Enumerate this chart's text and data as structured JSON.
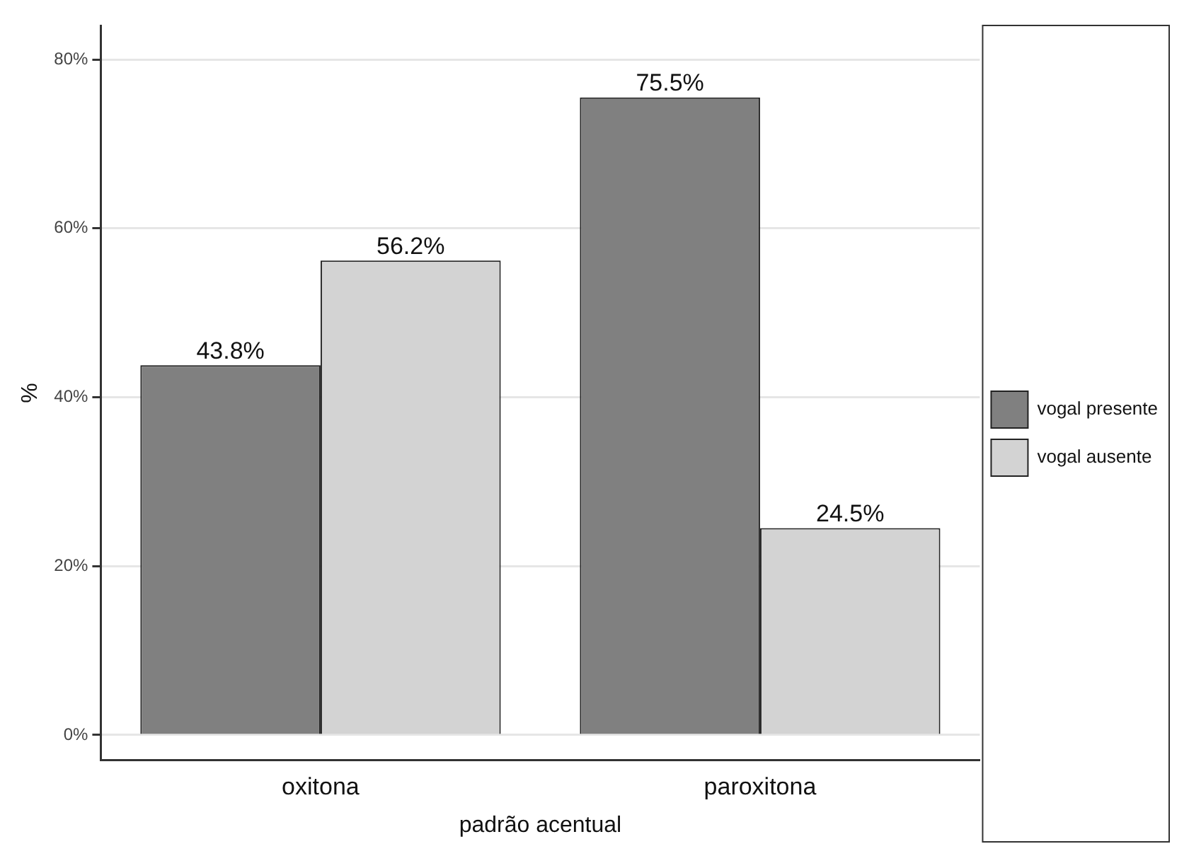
{
  "chart_data": {
    "type": "bar",
    "xlabel": "padrão acentual",
    "ylabel": "%",
    "categories": [
      "oxitona",
      "paroxitona"
    ],
    "series": [
      {
        "name": "vogal presente",
        "color": "#808080",
        "values": [
          43.8,
          75.5
        ],
        "value_labels": [
          "43.8%",
          "75.5%"
        ]
      },
      {
        "name": "vogal ausente",
        "color": "#d3d3d3",
        "values": [
          56.2,
          24.5
        ],
        "value_labels": [
          "56.2%",
          "24.5%"
        ]
      }
    ],
    "ylim": [
      -3,
      84
    ],
    "yticks": [
      {
        "value": 0,
        "label": "0%"
      },
      {
        "value": 20,
        "label": "20%"
      },
      {
        "value": 40,
        "label": "40%"
      },
      {
        "value": 60,
        "label": "60%"
      },
      {
        "value": 80,
        "label": "80%"
      }
    ],
    "grid": "y",
    "legend": "right"
  }
}
